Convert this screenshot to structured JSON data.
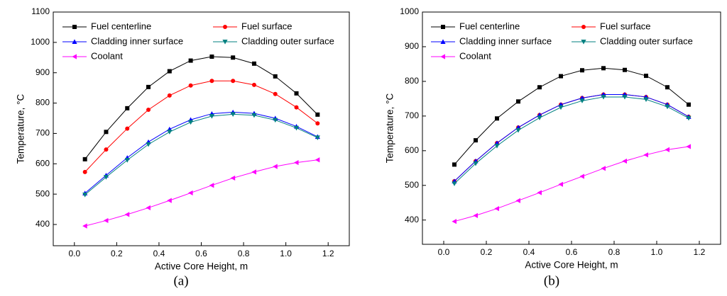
{
  "chart_data": [
    {
      "type": "line",
      "caption": "(a)",
      "xlabel": "Active Core Height, m",
      "ylabel": "Temperature, °C",
      "x": [
        0.05,
        0.15,
        0.25,
        0.35,
        0.45,
        0.55,
        0.65,
        0.75,
        0.85,
        0.95,
        1.05,
        1.15
      ],
      "xlim": [
        -0.1,
        1.3
      ],
      "xticks": [
        {
          "value": 0,
          "label": "0.0"
        },
        0.2,
        0.4,
        0.6,
        0.8,
        {
          "value": 1,
          "label": "1.0"
        },
        1.2
      ],
      "ylim": [
        330,
        1100
      ],
      "yticks": [
        400,
        500,
        600,
        700,
        800,
        900,
        1000,
        1100
      ],
      "series": [
        {
          "name": "Fuel centerline",
          "color": "#000000",
          "marker": "square",
          "values": [
            615,
            705,
            783,
            853,
            905,
            940,
            953,
            950,
            930,
            888,
            832,
            762
          ]
        },
        {
          "name": "Fuel surface",
          "color": "#ff0000",
          "marker": "circle",
          "values": [
            573,
            647,
            716,
            778,
            825,
            858,
            873,
            873,
            860,
            830,
            786,
            733
          ]
        },
        {
          "name": "Cladding inner surface",
          "color": "#0000ff",
          "marker": "triangle-up",
          "values": [
            503,
            562,
            620,
            672,
            714,
            745,
            765,
            770,
            766,
            750,
            723,
            689
          ]
        },
        {
          "name": "Cladding outer surface",
          "color": "#008080",
          "marker": "triangle-down",
          "values": [
            498,
            556,
            612,
            664,
            705,
            737,
            757,
            763,
            760,
            744,
            718,
            686
          ]
        },
        {
          "name": "Coolant",
          "color": "#ff00ff",
          "marker": "triangle-left",
          "values": [
            395,
            413,
            433,
            455,
            479,
            504,
            529,
            553,
            573,
            591,
            604,
            613
          ]
        }
      ]
    },
    {
      "type": "line",
      "caption": "(b)",
      "xlabel": "Active Core Height, m",
      "ylabel": "Temperature, °C",
      "x": [
        0.05,
        0.15,
        0.25,
        0.35,
        0.45,
        0.55,
        0.65,
        0.75,
        0.85,
        0.95,
        1.05,
        1.15
      ],
      "xlim": [
        -0.1,
        1.3
      ],
      "xticks": [
        {
          "value": 0,
          "label": "0.0"
        },
        0.2,
        0.4,
        0.6,
        0.8,
        {
          "value": 1,
          "label": "1.0"
        },
        1.2
      ],
      "ylim": [
        330,
        1000
      ],
      "yticks": [
        400,
        500,
        600,
        700,
        800,
        900,
        1000
      ],
      "series": [
        {
          "name": "Fuel centerline",
          "color": "#000000",
          "marker": "square",
          "values": [
            560,
            630,
            693,
            742,
            783,
            815,
            832,
            838,
            833,
            816,
            783,
            733
          ]
        },
        {
          "name": "Fuel surface",
          "color": "#ff0000",
          "marker": "circle",
          "values": [
            512,
            570,
            622,
            667,
            703,
            733,
            752,
            762,
            762,
            755,
            733,
            698
          ]
        },
        {
          "name": "Cladding inner surface",
          "color": "#0000ff",
          "marker": "triangle-up",
          "values": [
            512,
            570,
            622,
            667,
            703,
            733,
            752,
            762,
            762,
            755,
            733,
            698
          ]
        },
        {
          "name": "Cladding outer surface",
          "color": "#008080",
          "marker": "triangle-down",
          "values": [
            505,
            563,
            614,
            659,
            695,
            725,
            744,
            755,
            755,
            748,
            727,
            694
          ]
        },
        {
          "name": "Coolant",
          "color": "#ff00ff",
          "marker": "triangle-left",
          "values": [
            396,
            413,
            433,
            456,
            479,
            503,
            526,
            549,
            570,
            588,
            603,
            612
          ]
        }
      ]
    }
  ]
}
